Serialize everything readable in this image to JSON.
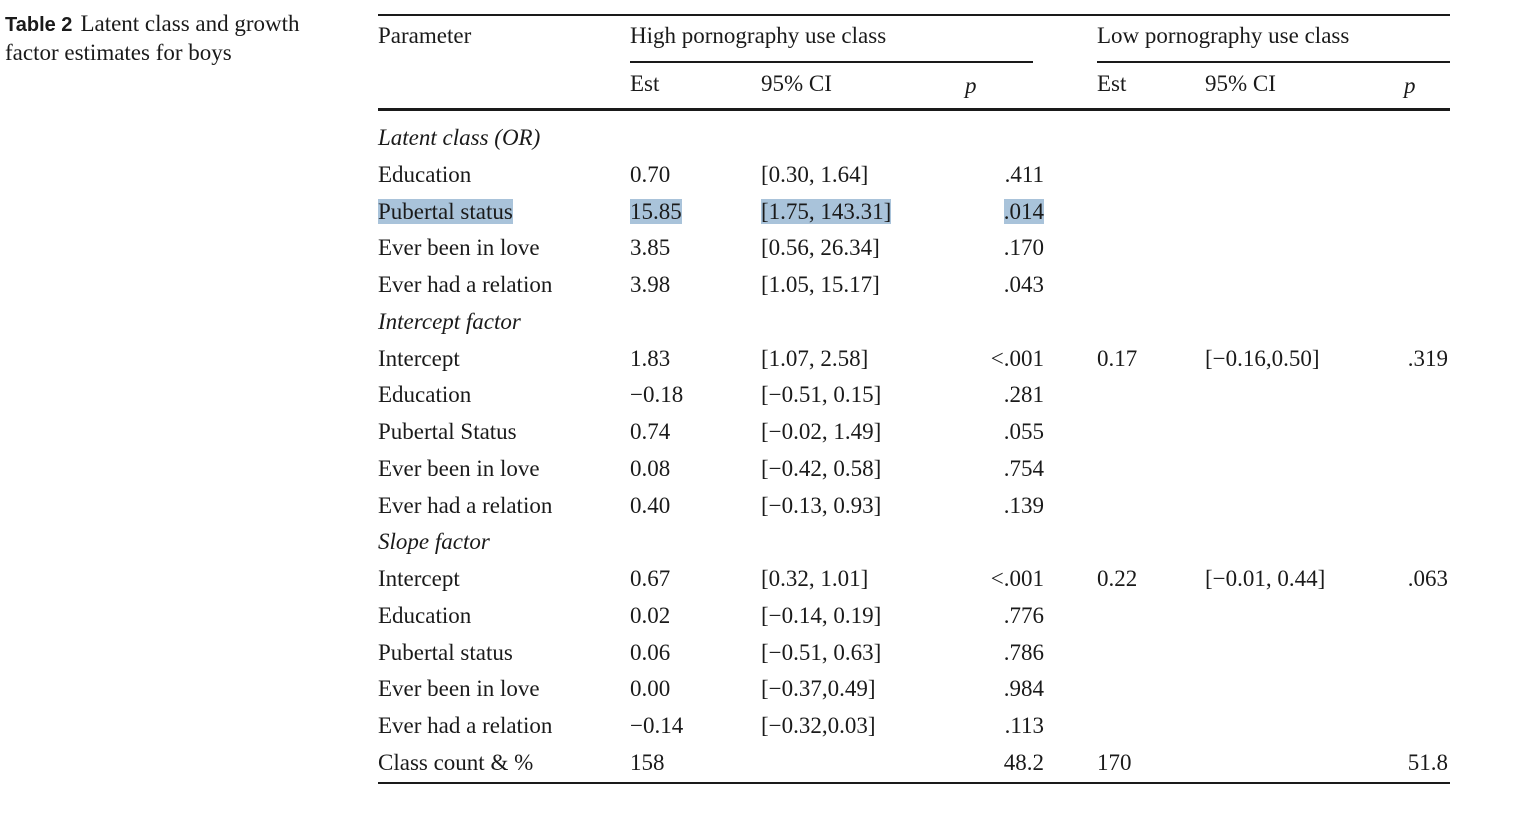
{
  "caption": {
    "label": "Table 2",
    "text": "Latent class and growth factor estimates for boys"
  },
  "header": {
    "parameter": "Parameter",
    "high_group": "High pornography use class",
    "low_group": "Low pornography use class",
    "est": "Est",
    "ci": "95% CI",
    "p": "p"
  },
  "rows": [
    {
      "type": "section",
      "label": "Latent class (OR)"
    },
    {
      "type": "data",
      "label": "Education",
      "h_est": "0.70",
      "h_ci": "[0.30, 1.64]",
      "h_p": ".411",
      "l_est": "",
      "l_ci": "",
      "l_p": ""
    },
    {
      "type": "data",
      "label": "Pubertal status",
      "h_est": "15.85",
      "h_ci": "[1.75, 143.31]",
      "h_p": ".014",
      "l_est": "",
      "l_ci": "",
      "l_p": "",
      "highlighted": true
    },
    {
      "type": "data",
      "label": "Ever been in love",
      "h_est": "3.85",
      "h_ci": "[0.56, 26.34]",
      "h_p": ".170",
      "l_est": "",
      "l_ci": "",
      "l_p": ""
    },
    {
      "type": "data",
      "label": "Ever had a relation",
      "h_est": "3.98",
      "h_ci": "[1.05, 15.17]",
      "h_p": ".043",
      "l_est": "",
      "l_ci": "",
      "l_p": ""
    },
    {
      "type": "section",
      "label": "Intercept factor"
    },
    {
      "type": "data",
      "label": "Intercept",
      "h_est": "1.83",
      "h_ci": "[1.07, 2.58]",
      "h_p": "<.001",
      "l_est": "0.17",
      "l_ci": "[−0.16,0.50]",
      "l_p": ".319"
    },
    {
      "type": "data",
      "label": "Education",
      "h_est": "−0.18",
      "h_ci": "[−0.51, 0.15]",
      "h_p": ".281",
      "l_est": "",
      "l_ci": "",
      "l_p": ""
    },
    {
      "type": "data",
      "label": "Pubertal Status",
      "h_est": "0.74",
      "h_ci": "[−0.02, 1.49]",
      "h_p": ".055",
      "l_est": "",
      "l_ci": "",
      "l_p": ""
    },
    {
      "type": "data",
      "label": "Ever been in love",
      "h_est": "0.08",
      "h_ci": "[−0.42, 0.58]",
      "h_p": ".754",
      "l_est": "",
      "l_ci": "",
      "l_p": ""
    },
    {
      "type": "data",
      "label": "Ever had a relation",
      "h_est": "0.40",
      "h_ci": "[−0.13, 0.93]",
      "h_p": ".139",
      "l_est": "",
      "l_ci": "",
      "l_p": ""
    },
    {
      "type": "section",
      "label": "Slope factor"
    },
    {
      "type": "data",
      "label": "Intercept",
      "h_est": "0.67",
      "h_ci": "[0.32, 1.01]",
      "h_p": "<.001",
      "l_est": "0.22",
      "l_ci": "[−0.01, 0.44]",
      "l_p": ".063"
    },
    {
      "type": "data",
      "label": "Education",
      "h_est": "0.02",
      "h_ci": "[−0.14, 0.19]",
      "h_p": ".776",
      "l_est": "",
      "l_ci": "",
      "l_p": ""
    },
    {
      "type": "data",
      "label": "Pubertal status",
      "h_est": "0.06",
      "h_ci": "[−0.51, 0.63]",
      "h_p": ".786",
      "l_est": "",
      "l_ci": "",
      "l_p": ""
    },
    {
      "type": "data",
      "label": "Ever been in love",
      "h_est": "0.00",
      "h_ci": "[−0.37,0.49]",
      "h_p": ".984",
      "l_est": "",
      "l_ci": "",
      "l_p": ""
    },
    {
      "type": "data",
      "label": "Ever had a relation",
      "h_est": "−0.14",
      "h_ci": "[−0.32,0.03]",
      "h_p": ".113",
      "l_est": "",
      "l_ci": "",
      "l_p": ""
    },
    {
      "type": "data",
      "label": "Class count & %",
      "h_est": "158",
      "h_ci": "",
      "h_p": "48.2",
      "l_est": "170",
      "l_ci": "",
      "l_p": "51.8"
    }
  ],
  "colors": {
    "text": "#1a1a1a",
    "highlight": "#a9c3da"
  }
}
